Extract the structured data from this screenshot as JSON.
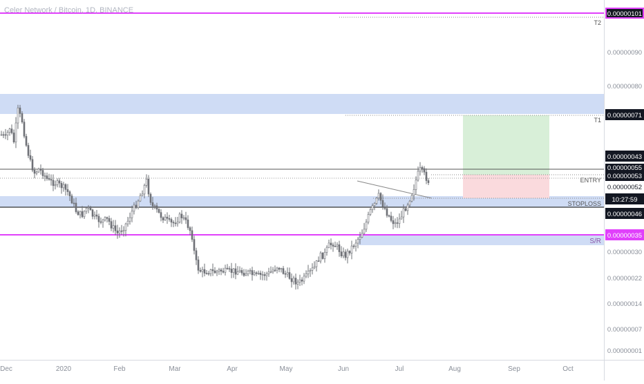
{
  "title": "Celer Network / Bitcoin, 1D, BINANCE",
  "colors": {
    "zone_blue": "#cfdcf5",
    "zone_green": "#d8efd8",
    "zone_red": "#fadadd",
    "magenta": "#e040fb",
    "candle": "#6e7076",
    "dark_label": "#131722"
  },
  "chart_data": {
    "type": "candlestick",
    "title": "Celer Network / Bitcoin, 1D, BINANCE",
    "x_ticks": [
      "Dec",
      "2020",
      "Feb",
      "Mar",
      "Apr",
      "May",
      "Jun",
      "Jul",
      "Aug",
      "Sep",
      "Oct"
    ],
    "y_ticks": [
      "0.00000090",
      "0.00000080",
      "0.00000030",
      "0.00000022",
      "0.00000014",
      "0.00000007",
      "0.00000001"
    ],
    "y_scale": "non-linear (as displayed)",
    "grid": false,
    "levels": [
      {
        "label": "T2",
        "price": "0.00000101",
        "style": "magenta"
      },
      {
        "label": "T1",
        "price": "0.00000071",
        "style": "dark"
      },
      {
        "label": "",
        "price": "0.00000055",
        "style": "dark"
      },
      {
        "label": "ENTRY",
        "price": "0.00000053",
        "style": "dark"
      },
      {
        "label": "",
        "price": "0.00000052",
        "style": "white"
      },
      {
        "label": "STOPLOSS",
        "price": "10:27:59",
        "style": "dark"
      },
      {
        "label": "",
        "price": "0.00000046",
        "style": "dark"
      },
      {
        "label": "S/R",
        "price": "0.00000035",
        "style": "magenta"
      }
    ],
    "extra_label": "0.00000043",
    "zones": [
      {
        "type": "resistance",
        "color": "blue"
      },
      {
        "type": "support",
        "color": "blue"
      },
      {
        "type": "target",
        "color": "green"
      },
      {
        "type": "stop",
        "color": "red"
      }
    ]
  }
}
